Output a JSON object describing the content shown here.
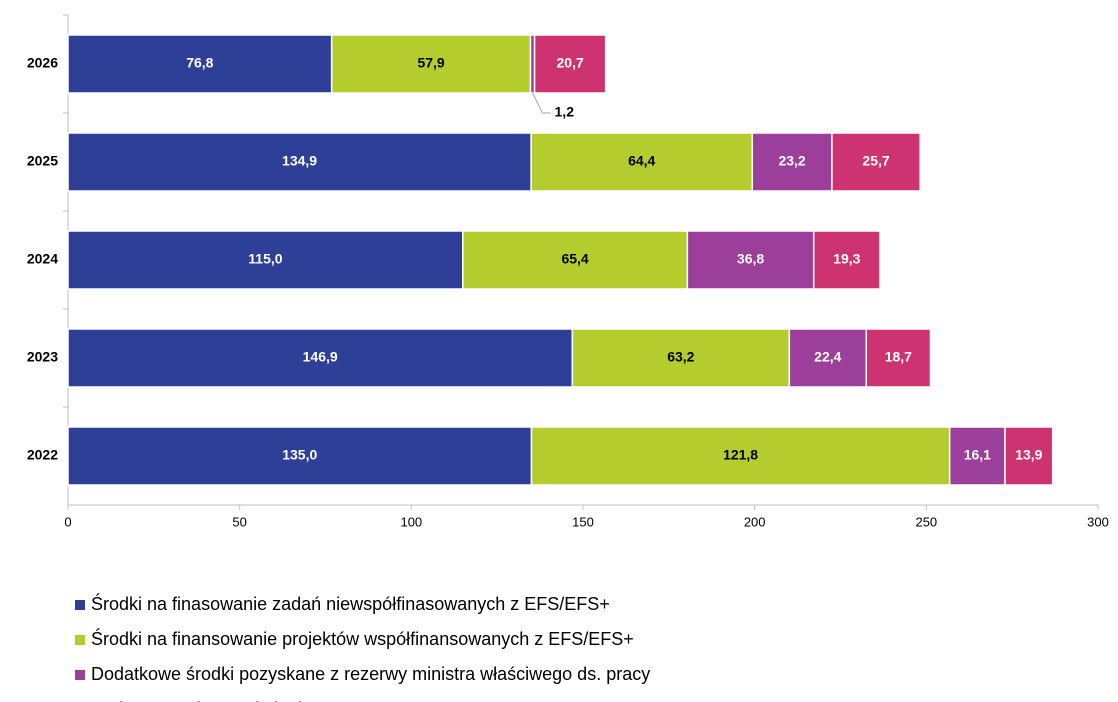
{
  "chart_data": {
    "type": "stacked-bar-horizontal",
    "categories": [
      "2026",
      "2025",
      "2024",
      "2023",
      "2022"
    ],
    "series": [
      {
        "name": "Środki na finasowanie zadań niewspółfinasowanych z EFS/EFS+",
        "color": "#2e3f97",
        "values": [
          76.8,
          134.9,
          115.0,
          146.9,
          135.0
        ],
        "value_labels": [
          "76,8",
          "134,9",
          "115,0",
          "146,9",
          "135,0"
        ]
      },
      {
        "name": "Środki na finansowanie projektów współfinansowanych z EFS/EFS+",
        "color": "#b5cc2e",
        "values": [
          57.9,
          64.4,
          65.4,
          63.2,
          121.8
        ],
        "value_labels": [
          "57,9",
          "64,4",
          "65,4",
          "63,2",
          "121,8"
        ]
      },
      {
        "name": "Dodatkowe środki pozyskane z rezerwy ministra właściwego ds. pracy",
        "color": "#9b3f9b",
        "values": [
          1.2,
          23.2,
          36.8,
          22.4,
          16.1
        ],
        "value_labels": [
          "1,2",
          "23,2",
          "36,8",
          "22,4",
          "16,1"
        ]
      },
      {
        "name": "Krajowy Fundusz Szkoleniowy",
        "color": "#cc3370",
        "values": [
          20.7,
          25.7,
          19.3,
          18.7,
          13.9
        ],
        "value_labels": [
          "20,7",
          "25,7",
          "19,3",
          "18,7",
          "13,9"
        ]
      }
    ],
    "xlim": [
      0,
      300
    ],
    "xticks": [
      0,
      50,
      100,
      150,
      200,
      250,
      300
    ],
    "grid": false,
    "legend": "bottom"
  }
}
